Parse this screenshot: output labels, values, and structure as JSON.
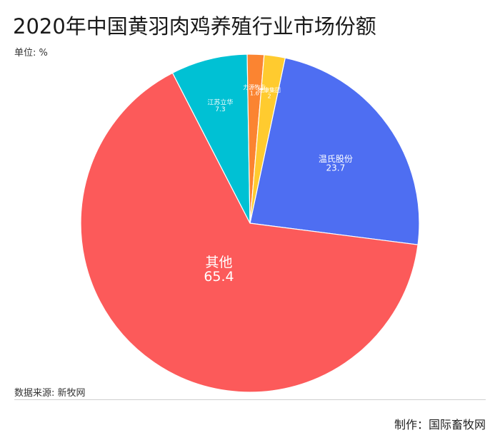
{
  "header": {
    "title": "2020年中国黄羽肉鸡养殖行业市场份额",
    "unit": "单位: %"
  },
  "footer": {
    "source": "数据来源: 新牧网",
    "credit": "制作：国际畜牧网"
  },
  "chart_data": {
    "type": "pie",
    "title": "2020年中国黄羽肉鸡养殖行业市场份额",
    "unit": "%",
    "slices": [
      {
        "name": "温氏股份",
        "value": 23.7,
        "color": "#4e6ef2"
      },
      {
        "name": "其他",
        "value": 65.4,
        "color": "#fc5a5a"
      },
      {
        "name": "江苏立华",
        "value": 7.3,
        "color": "#00c1d4"
      },
      {
        "name": "力源牧业",
        "value": 1.6,
        "color": "#fb8431"
      },
      {
        "name": "德康集团",
        "value": 2,
        "color": "#ffcb2f"
      }
    ]
  }
}
